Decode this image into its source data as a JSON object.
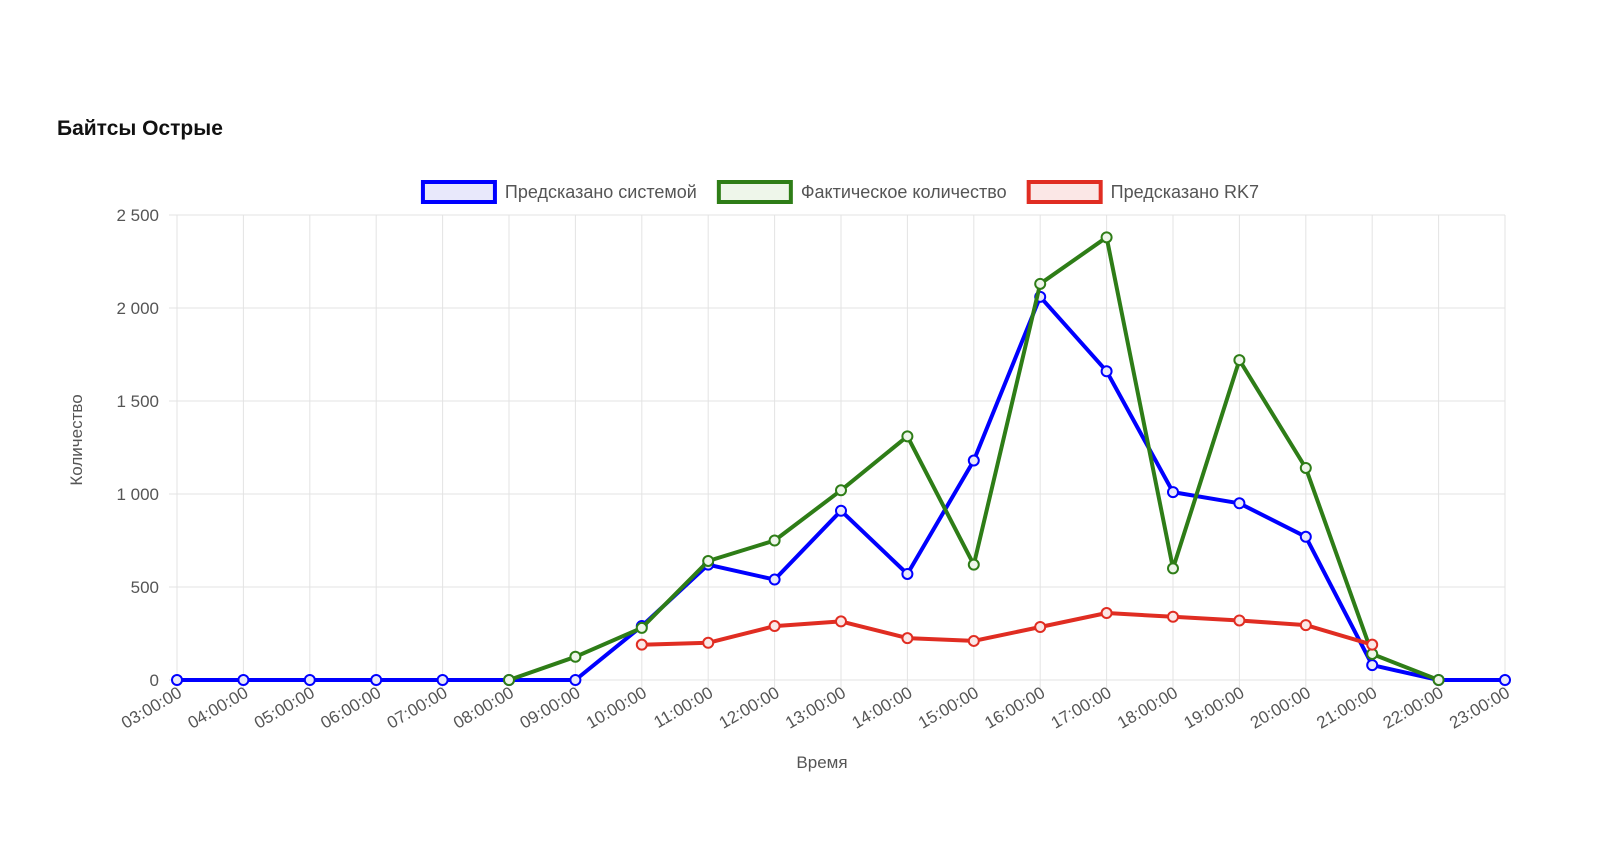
{
  "title": "Байтсы Острые",
  "chart_data": {
    "type": "line",
    "title": "Байтсы Острые",
    "xlabel": "Время",
    "ylabel": "Количество",
    "categories": [
      "03:00:00",
      "04:00:00",
      "05:00:00",
      "06:00:00",
      "07:00:00",
      "08:00:00",
      "09:00:00",
      "10:00:00",
      "11:00:00",
      "12:00:00",
      "13:00:00",
      "14:00:00",
      "15:00:00",
      "16:00:00",
      "17:00:00",
      "18:00:00",
      "19:00:00",
      "20:00:00",
      "21:00:00",
      "22:00:00",
      "23:00:00"
    ],
    "ylim": [
      0,
      2500
    ],
    "yticks": [
      0,
      500,
      1000,
      1500,
      2000,
      2500
    ],
    "ytick_labels": [
      "0",
      "500",
      "1 000",
      "1 500",
      "2 000",
      "2 500"
    ],
    "grid": true,
    "legend_position": "top",
    "series": [
      {
        "name": "Предсказано системой",
        "color": "#0000ff",
        "fill": "#e8e8fb",
        "values": [
          0,
          0,
          0,
          0,
          0,
          0,
          0,
          290,
          620,
          540,
          910,
          570,
          1180,
          2060,
          1660,
          1010,
          950,
          770,
          80,
          0,
          0
        ]
      },
      {
        "name": "Фактическое количество",
        "color": "#2e7d17",
        "fill": "#eef6ea",
        "values": [
          null,
          null,
          null,
          null,
          null,
          0,
          125,
          280,
          640,
          750,
          1020,
          1310,
          620,
          2130,
          2380,
          600,
          1720,
          1140,
          140,
          0,
          null
        ]
      },
      {
        "name": "Предсказано RK7",
        "color": "#e02d22",
        "fill": "#fbe7e6",
        "values": [
          null,
          null,
          null,
          null,
          null,
          null,
          null,
          190,
          200,
          290,
          315,
          225,
          210,
          285,
          360,
          340,
          320,
          295,
          190,
          null,
          null
        ]
      }
    ]
  }
}
